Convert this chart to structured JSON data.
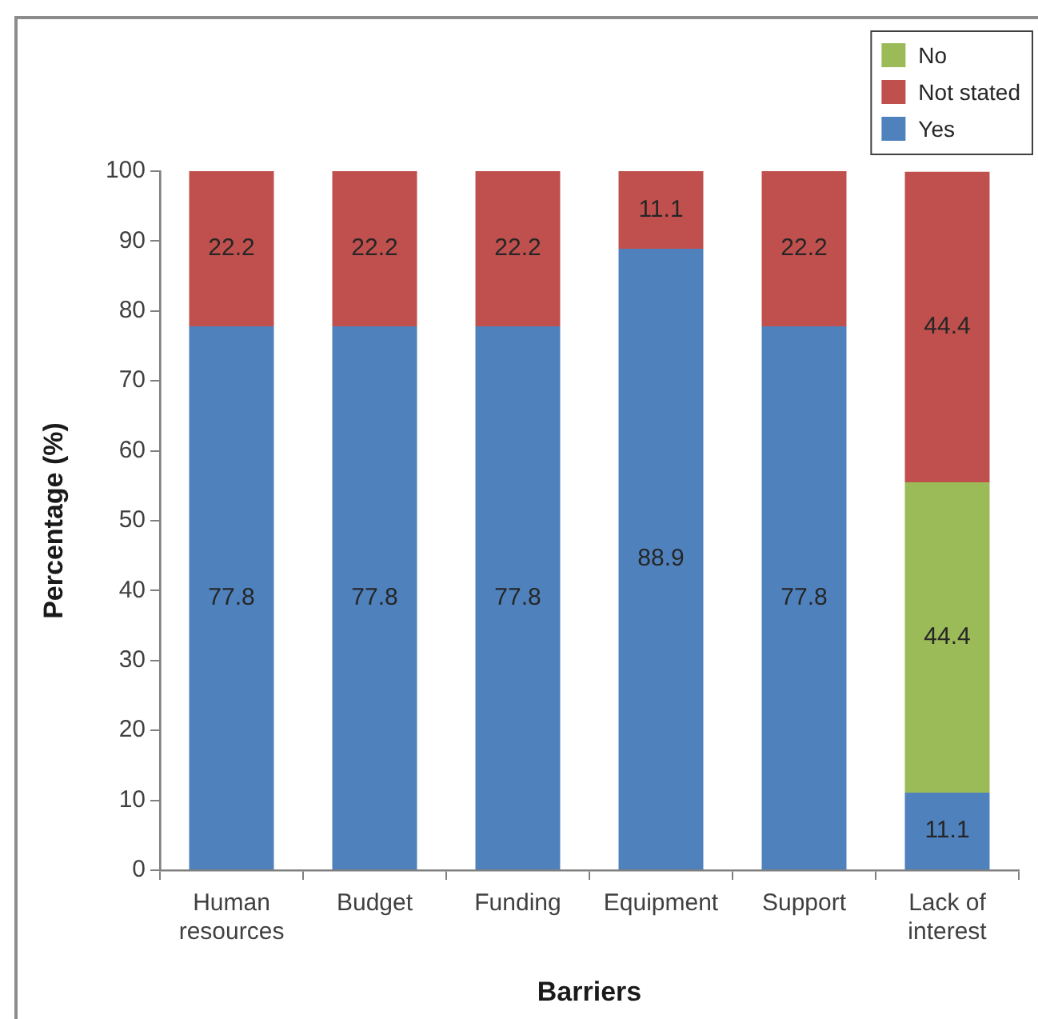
{
  "chart_data": {
    "type": "bar",
    "xlabel": "Barriers",
    "ylabel": "Percentage (%)",
    "categories": [
      "Human resources",
      "Budget",
      "Funding",
      "Equipment",
      "Support",
      "Lack of interest"
    ],
    "series": [
      {
        "name": "Yes",
        "color": "#4f81bd",
        "values": [
          77.8,
          77.8,
          77.8,
          88.9,
          77.8,
          11.1
        ]
      },
      {
        "name": "No",
        "color": "#9bbb59",
        "values": [
          null,
          null,
          null,
          null,
          null,
          44.4
        ]
      },
      {
        "name": "Not stated",
        "color": "#c0504d",
        "values": [
          22.2,
          22.2,
          22.2,
          11.1,
          22.2,
          44.4
        ]
      }
    ],
    "stacked": true,
    "ylim": [
      0,
      100
    ],
    "yticks": [
      0,
      10,
      20,
      30,
      40,
      50,
      60,
      70,
      80,
      90,
      100
    ],
    "data_labels": true,
    "legend": "top right"
  }
}
